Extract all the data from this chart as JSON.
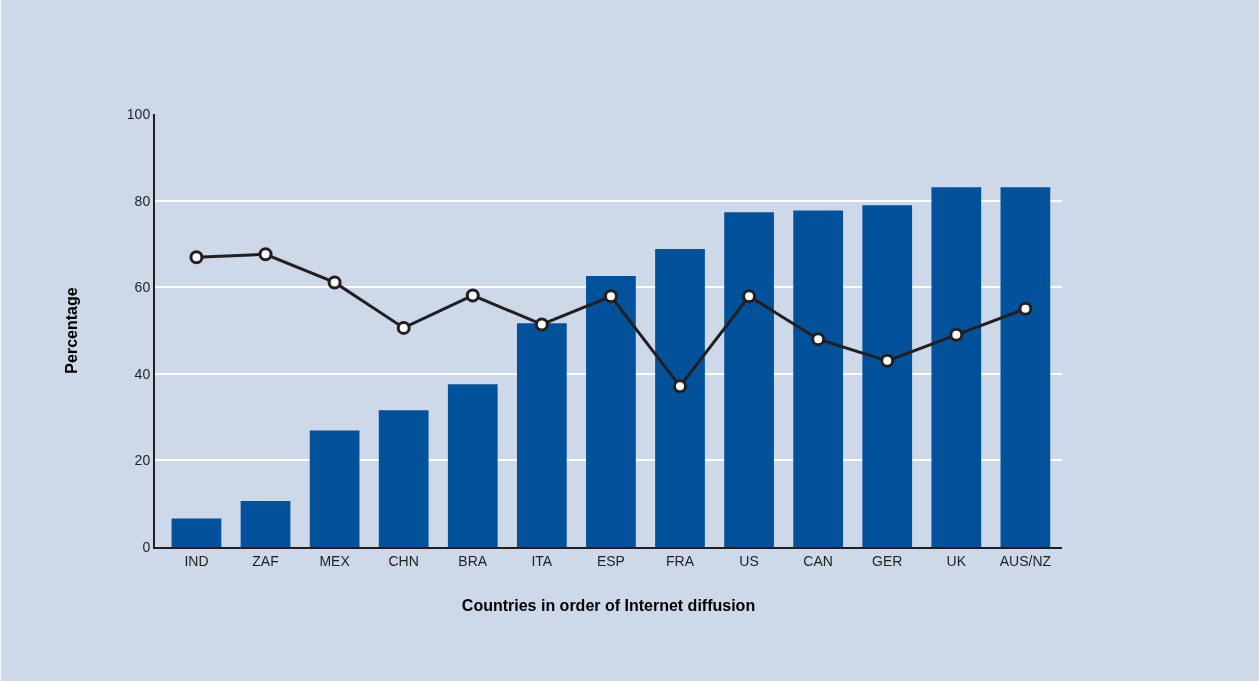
{
  "chart_data": {
    "type": "bar",
    "xlabel": "Countries in order of Internet diffusion",
    "ylabel": "Percentage",
    "categories": [
      "IND",
      "ZAF",
      "MEX",
      "CHN",
      "BRA",
      "ITA",
      "ESP",
      "FRA",
      "US",
      "CAN",
      "GER",
      "UK",
      "AUS/NZ"
    ],
    "series": [
      {
        "color": "#02519b",
        "values": [
          6.6,
          10.6,
          26.9,
          31.6,
          37.6,
          51.7,
          62.6,
          68.8,
          77.3,
          77.7,
          78.9,
          83.1,
          83.1
        ]
      },
      {
        "type": "line",
        "color": "#231f20",
        "marker": "circle",
        "line_style": "solid",
        "values": [
          66.9,
          67.6,
          61.1,
          50.6,
          58.1,
          51.4,
          57.9,
          37.1,
          57.9,
          48.0,
          43.0,
          49.0,
          55.0
        ]
      }
    ],
    "ylim": [
      0,
      100
    ],
    "yticks": [
      0,
      20,
      40,
      60,
      80,
      100
    ],
    "grid": "y"
  }
}
